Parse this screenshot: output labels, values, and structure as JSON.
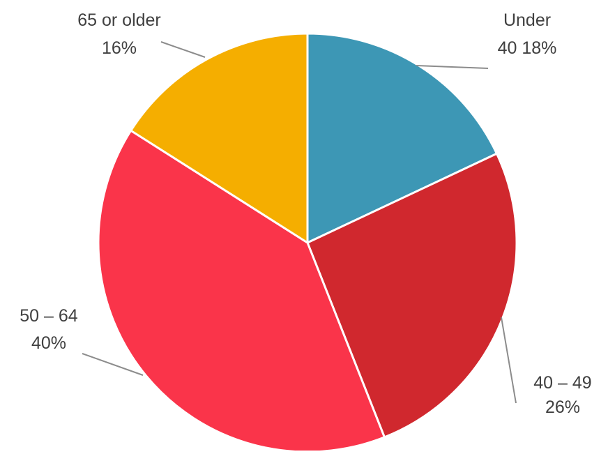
{
  "chart_data": {
    "type": "pie",
    "title": "",
    "slices": [
      {
        "label": "Under 40",
        "value": 18,
        "display": [
          "Under",
          "40 18%"
        ],
        "color": "#3D97B5"
      },
      {
        "label": "40 – 49",
        "value": 26,
        "display": [
          "40 – 49",
          "26%"
        ],
        "color": "#D0282E"
      },
      {
        "label": "50 – 64",
        "value": 40,
        "display": [
          "50 – 64",
          "40%"
        ],
        "color": "#FA344A"
      },
      {
        "label": "65 or older",
        "value": 16,
        "display": [
          "65 or older",
          "16%"
        ],
        "color": "#F5AE00"
      }
    ],
    "start_angle_deg": 0,
    "direction": "clockwise",
    "slice_border_color": "#ffffff",
    "leader_line_color": "#8c8c8c",
    "label_color": "#404040"
  }
}
